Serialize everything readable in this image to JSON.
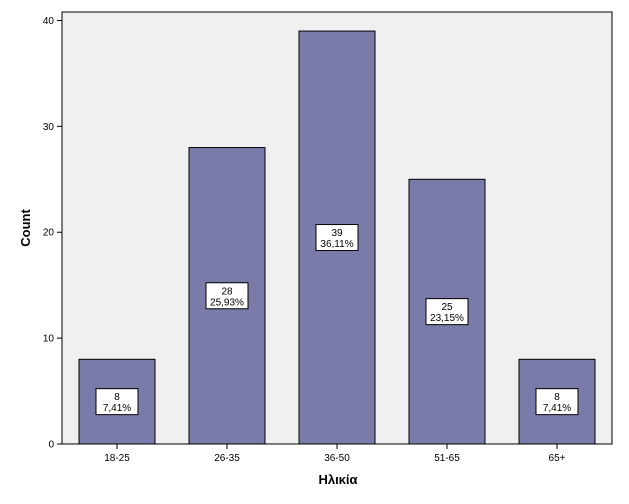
{
  "chart_data": {
    "type": "bar",
    "title": "",
    "xlabel": "Ηλικία",
    "ylabel": "Count",
    "categories": [
      "18-25",
      "26-35",
      "36-50",
      "51-65",
      "65+"
    ],
    "values": [
      8,
      28,
      39,
      25,
      8
    ],
    "percent_labels": [
      "7,41%",
      "25,93%",
      "36,11%",
      "23,15%",
      "7,41%"
    ],
    "ylim": [
      0,
      40.8
    ],
    "yticks": [
      0,
      10,
      20,
      30,
      40
    ],
    "grid": false,
    "bar_color": "#7b7ba9",
    "plot_background": "#f0f0f0",
    "legend": "none"
  }
}
